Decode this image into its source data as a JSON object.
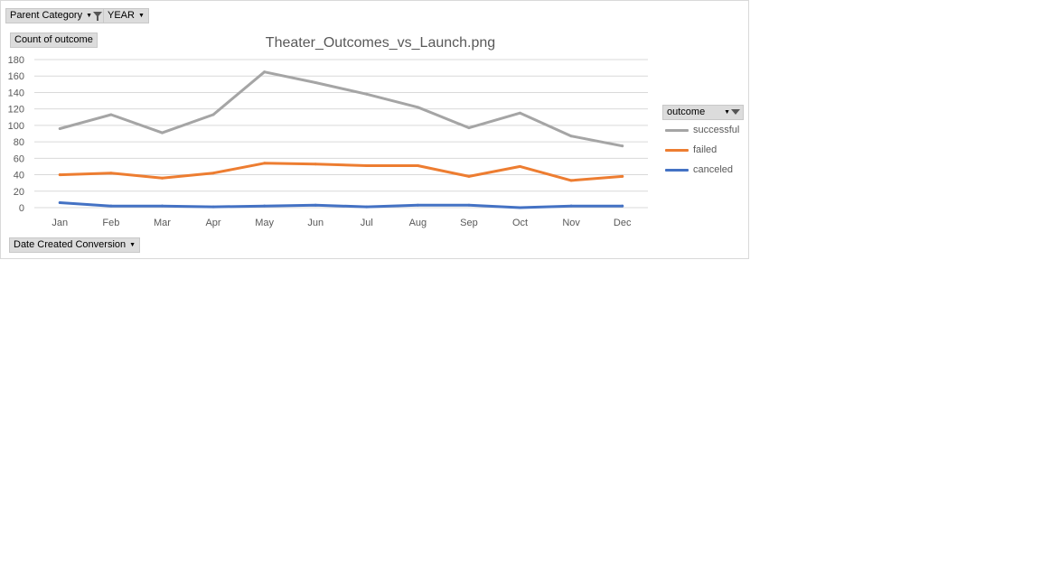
{
  "pivot": {
    "filter_fields": [
      "Parent Category",
      "YEAR"
    ],
    "value_field": "Count of  outcome",
    "axis_field": "Date Created Conversion",
    "legend_field": "outcome"
  },
  "colors": {
    "successful": "#a5a5a5",
    "failed": "#ed7d31",
    "canceled": "#4472c4",
    "grid": "#d9d9d9",
    "tick_text": "#595959"
  },
  "chart_data": {
    "type": "line",
    "title": "Theater_Outcomes_vs_Launch.png",
    "xlabel": "",
    "ylabel": "",
    "categories": [
      "Jan",
      "Feb",
      "Mar",
      "Apr",
      "May",
      "Jun",
      "Jul",
      "Aug",
      "Sep",
      "Oct",
      "Nov",
      "Dec"
    ],
    "ylim": [
      0,
      180
    ],
    "yticks": [
      0,
      20,
      40,
      60,
      80,
      100,
      120,
      140,
      160,
      180
    ],
    "grid": true,
    "legend_position": "right",
    "series": [
      {
        "name": "successful",
        "values": [
          96,
          113,
          91,
          113,
          165,
          152,
          138,
          122,
          97,
          115,
          87,
          75
        ]
      },
      {
        "name": "failed",
        "values": [
          40,
          42,
          36,
          42,
          54,
          53,
          51,
          51,
          38,
          50,
          33,
          38
        ]
      },
      {
        "name": "canceled",
        "values": [
          6,
          2,
          2,
          1,
          2,
          3,
          1,
          3,
          3,
          0,
          2,
          2
        ]
      }
    ]
  }
}
